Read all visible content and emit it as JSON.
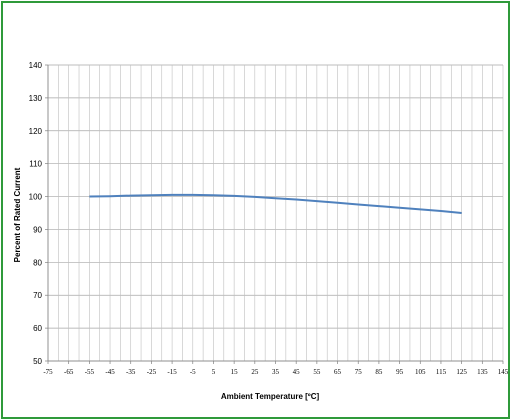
{
  "chart_data": {
    "type": "line",
    "title": "",
    "xlabel": "Ambient Temperature [ºC]",
    "ylabel": "Percent of Rated Current",
    "xlim": [
      -75,
      145
    ],
    "ylim": [
      50,
      140
    ],
    "x_ticks": [
      "-75",
      "-65",
      "-55",
      "-45",
      "-35",
      "-25",
      "-15",
      "-5",
      "5",
      "15",
      "25",
      "35",
      "45",
      "55",
      "65",
      "75",
      "85",
      "95",
      "105",
      "115",
      "125",
      "135",
      "145"
    ],
    "y_ticks": [
      "50",
      "60",
      "70",
      "80",
      "90",
      "100",
      "110",
      "120",
      "130",
      "140"
    ],
    "grid": true,
    "legend": "none",
    "series": [
      {
        "color": "#4f81bd",
        "x": [
          -55,
          -45,
          -35,
          -25,
          -15,
          -5,
          5,
          15,
          25,
          35,
          45,
          55,
          65,
          75,
          85,
          95,
          105,
          115,
          125
        ],
        "y": [
          100.0,
          100.1,
          100.3,
          100.4,
          100.5,
          100.5,
          100.4,
          100.2,
          99.9,
          99.5,
          99.1,
          98.6,
          98.1,
          97.6,
          97.1,
          96.6,
          96.1,
          95.6,
          95.0
        ]
      }
    ]
  }
}
